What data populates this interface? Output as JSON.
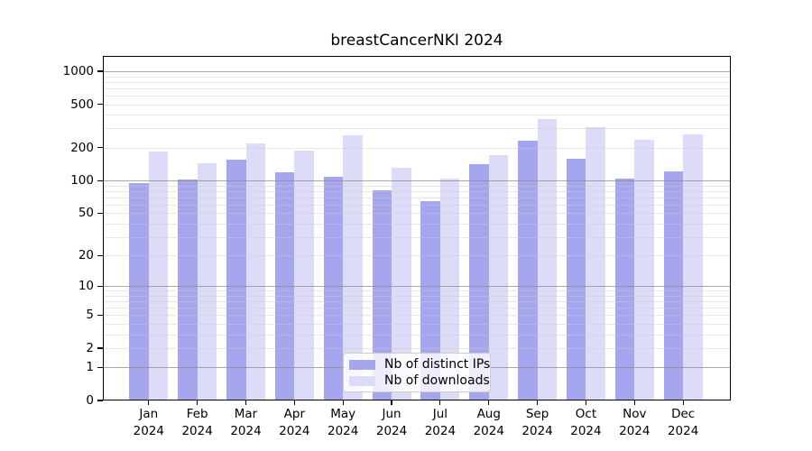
{
  "chart_data": {
    "type": "bar",
    "title": "breastCancerNKI 2024",
    "categories": [
      "Jan",
      "Feb",
      "Mar",
      "Apr",
      "May",
      "Jun",
      "Jul",
      "Aug",
      "Sep",
      "Oct",
      "Nov",
      "Dec"
    ],
    "year_label": "2024",
    "series": [
      {
        "name": "Nb of distinct IPs",
        "color": "#a6a6ef",
        "values": [
          95,
          102,
          155,
          120,
          109,
          82,
          64,
          141,
          234,
          160,
          105,
          121
        ]
      },
      {
        "name": "Nb of downloads",
        "color": "#dcdcf8",
        "values": [
          183,
          143,
          220,
          189,
          262,
          130,
          105,
          171,
          363,
          306,
          236,
          264
        ]
      }
    ],
    "xlabel": "",
    "ylabel": "",
    "yscale": "log1p",
    "yticks": [
      0,
      1,
      2,
      5,
      10,
      20,
      50,
      100,
      200,
      500,
      1000
    ],
    "ylim": [
      0,
      1380
    ],
    "grid": "horizontal, minor log divisions, decade lines darker, drawn over bars",
    "legend_position": "lower center inside plot"
  },
  "colors": {
    "background": "#ffffff",
    "spine": "#000000",
    "grid_minor": "#e6e6e6",
    "grid_major": "#a9a9a9",
    "text": "#000000",
    "legend_border": "#cccccc"
  }
}
